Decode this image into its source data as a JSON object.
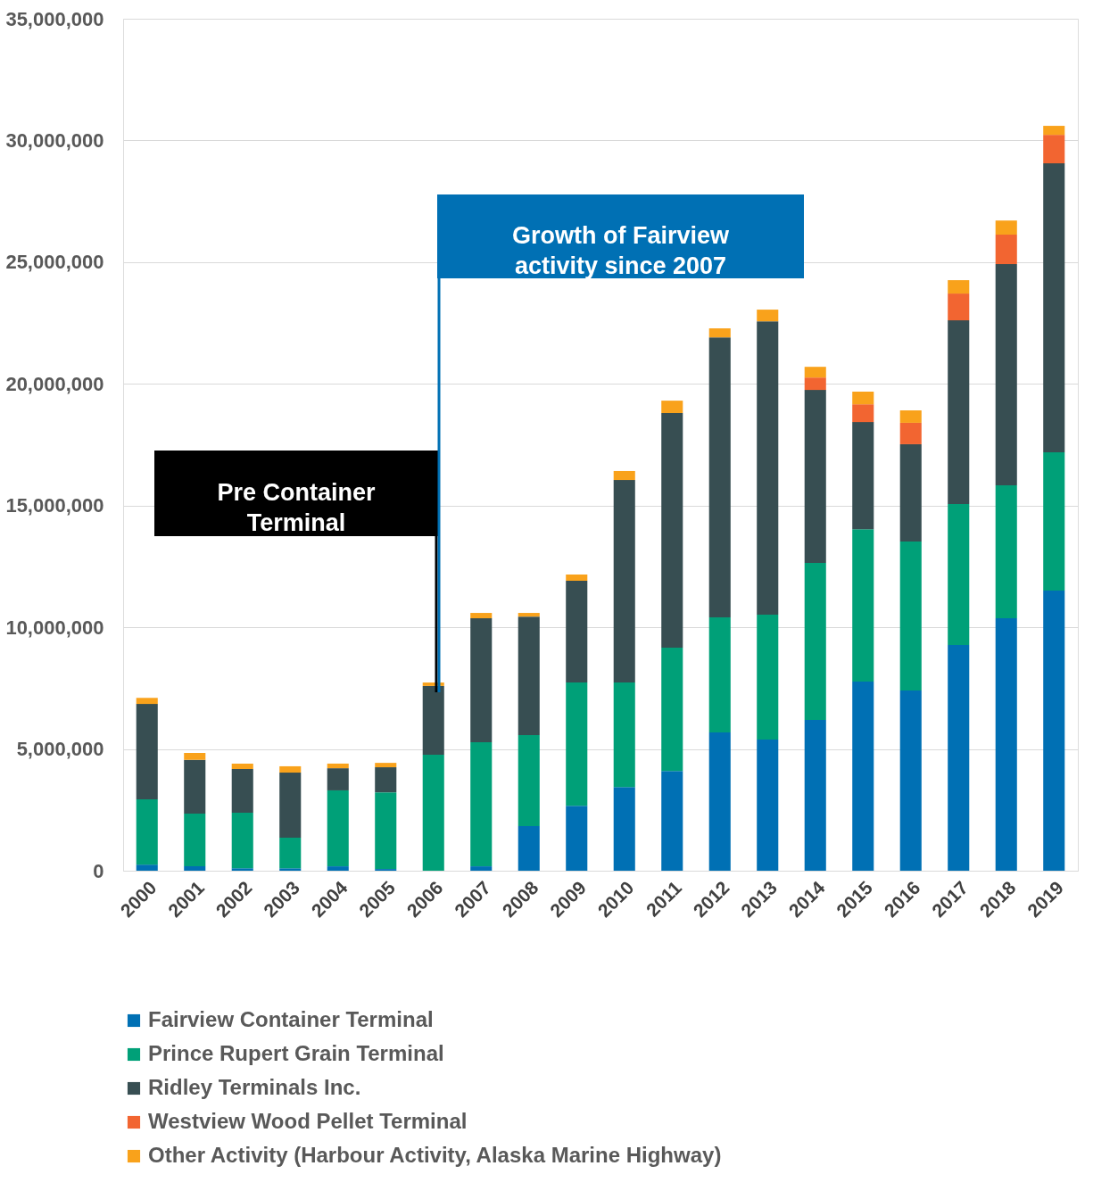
{
  "chart_data": {
    "type": "bar",
    "stacked": true,
    "categories": [
      "2000",
      "2001",
      "2002",
      "2003",
      "2004",
      "2005",
      "2006",
      "2007",
      "2008",
      "2009",
      "2010",
      "2011",
      "2012",
      "2013",
      "2014",
      "2015",
      "2016",
      "2017",
      "2018",
      "2019"
    ],
    "series": [
      {
        "name": "Fairview Container Terminal",
        "color": "#0070b4",
        "values": [
          250000,
          180000,
          100000,
          100000,
          180000,
          70000,
          0,
          180000,
          1830000,
          2670000,
          3440000,
          4100000,
          5680000,
          5390000,
          6190000,
          7770000,
          7400000,
          9270000,
          10370000,
          11510000
        ]
      },
      {
        "name": "Prince Rupert Grain Terminal",
        "color": "#00a078",
        "values": [
          2680000,
          2170000,
          2280000,
          1260000,
          3120000,
          3150000,
          4760000,
          5100000,
          3740000,
          5060000,
          4290000,
          5060000,
          4730000,
          5130000,
          6450000,
          6260000,
          6120000,
          5790000,
          5460000,
          5680000
        ]
      },
      {
        "name": "Ridley Terminals Inc.",
        "color": "#374e52",
        "values": [
          3920000,
          2200000,
          1800000,
          2670000,
          910000,
          1030000,
          2830000,
          5090000,
          4870000,
          4180000,
          8320000,
          9640000,
          11500000,
          12050000,
          7110000,
          4400000,
          4000000,
          7550000,
          9090000,
          11870000
        ]
      },
      {
        "name": "Westview Wood Pellet Terminal",
        "color": "#f26531",
        "values": [
          0,
          0,
          0,
          0,
          0,
          0,
          0,
          0,
          0,
          0,
          0,
          0,
          0,
          0,
          510000,
          730000,
          880000,
          1100000,
          1210000,
          1170000
        ]
      },
      {
        "name": "Other Activity (Harbour Activity, Alaska Marine Highway)",
        "color": "#f9a21b",
        "values": [
          250000,
          290000,
          220000,
          260000,
          190000,
          180000,
          140000,
          220000,
          150000,
          260000,
          370000,
          510000,
          370000,
          480000,
          440000,
          520000,
          510000,
          550000,
          580000,
          370000
        ]
      }
    ],
    "ylim": [
      0,
      35000000
    ],
    "yticks": [
      {
        "value": 0,
        "label": "0"
      },
      {
        "value": 5000000,
        "label": "5,000,000"
      },
      {
        "value": 10000000,
        "label": "10,000,000"
      },
      {
        "value": 15000000,
        "label": "15,000,000"
      },
      {
        "value": 20000000,
        "label": "20,000,000"
      },
      {
        "value": 25000000,
        "label": "25,000,000"
      },
      {
        "value": 30000000,
        "label": "30,000,000"
      },
      {
        "value": 35000000,
        "label": "35,000,000"
      }
    ],
    "grid": "y",
    "legend": "bottom",
    "annotations": [
      "Pre Container\nTerminal",
      "Growth of Fairview\nactivity since 2007"
    ]
  }
}
